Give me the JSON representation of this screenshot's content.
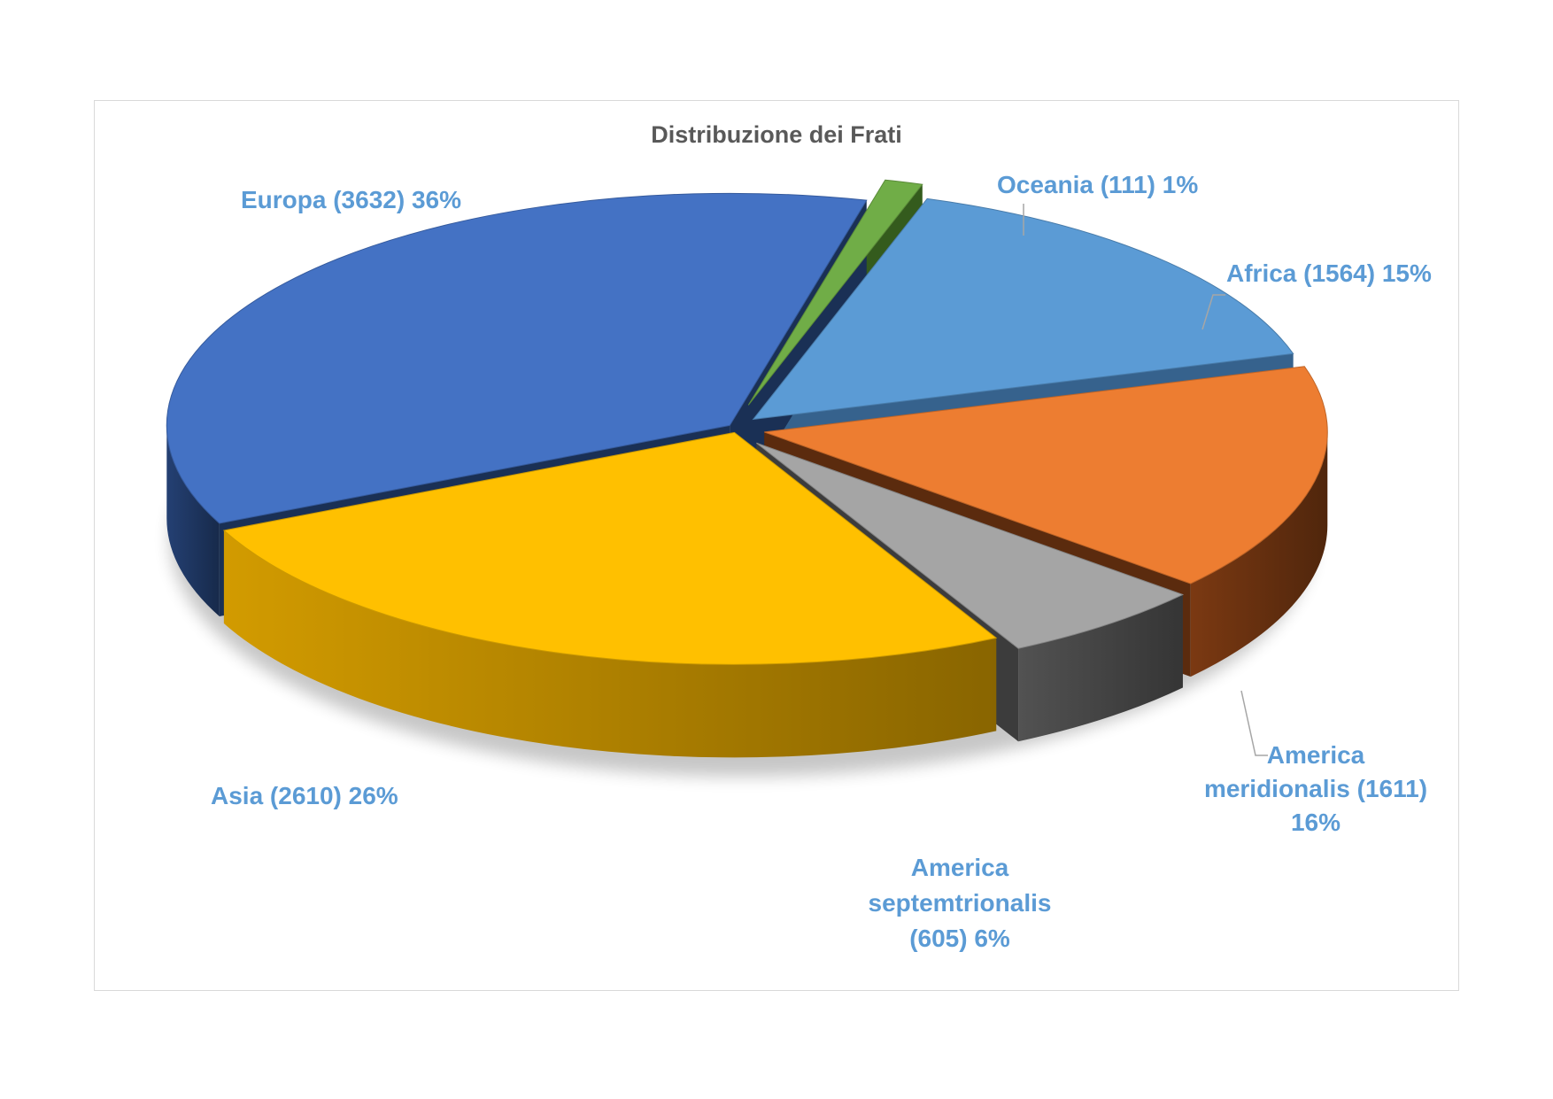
{
  "chart_data": {
    "type": "pie",
    "title": "Distribuzione dei Frati",
    "style": "3d-exploded",
    "slices": [
      {
        "name": "Africa",
        "value": 1564,
        "percent": 15,
        "color": "#5b9bd5",
        "side_color": "#3f73a6",
        "label_lines": [
          "Africa (1564) 15%"
        ]
      },
      {
        "name": "America meridionalis",
        "value": 1611,
        "percent": 16,
        "color": "#ed7d31",
        "side_color": "#6b3210",
        "label_lines": [
          "America",
          "meridionalis (1611)",
          "16%"
        ]
      },
      {
        "name": "America septemtrionalis",
        "value": 605,
        "percent": 6,
        "color": "#a5a5a5",
        "side_color": "#474747",
        "label_lines": [
          "America",
          "septemtrionalis",
          "(605) 6%"
        ]
      },
      {
        "name": "Asia",
        "value": 2610,
        "percent": 26,
        "color": "#ffc000",
        "side_color": "#b78700",
        "label_lines": [
          "Asia (2610) 26%"
        ]
      },
      {
        "name": "Europa",
        "value": 3632,
        "percent": 36,
        "color": "#4472c4",
        "side_color": "#1f3864",
        "label_lines": [
          "Europa (3632) 36%"
        ]
      },
      {
        "name": "Oceania",
        "value": 111,
        "percent": 1,
        "color": "#70ad47",
        "side_color": "#3d6b22",
        "label_lines": [
          "Oceania (111) 1%"
        ]
      }
    ]
  }
}
